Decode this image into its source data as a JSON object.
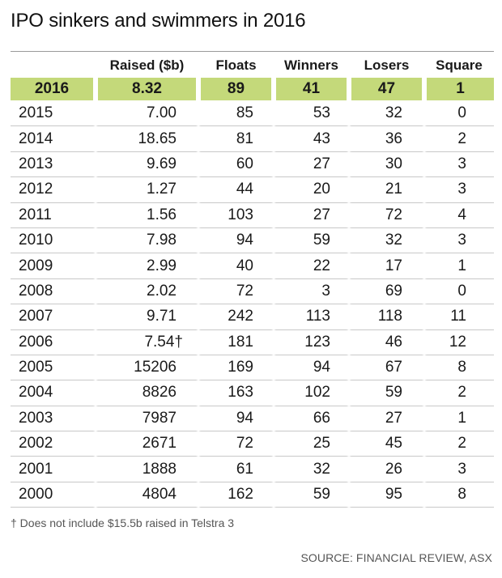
{
  "title": "IPO sinkers and swimmers in 2016",
  "colors": {
    "highlight": "#c4d97a",
    "rule": "#c8c8c8"
  },
  "columns": [
    "",
    "Raised ($b)",
    "Floats",
    "Winners",
    "Losers",
    "Square"
  ],
  "rows": [
    {
      "year": "2016",
      "raised": "8.32",
      "floats": "89",
      "winners": "41",
      "losers": "47",
      "square": "1"
    },
    {
      "year": "2015",
      "raised": "7.00",
      "floats": "85",
      "winners": "53",
      "losers": "32",
      "square": "0"
    },
    {
      "year": "2014",
      "raised": "18.65",
      "floats": "81",
      "winners": "43",
      "losers": "36",
      "square": "2"
    },
    {
      "year": "2013",
      "raised": "9.69",
      "floats": "60",
      "winners": "27",
      "losers": "30",
      "square": "3"
    },
    {
      "year": "2012",
      "raised": "1.27",
      "floats": "44",
      "winners": "20",
      "losers": "21",
      "square": "3"
    },
    {
      "year": "2011",
      "raised": "1.56",
      "floats": "103",
      "winners": "27",
      "losers": "72",
      "square": "4"
    },
    {
      "year": "2010",
      "raised": "7.98",
      "floats": "94",
      "winners": "59",
      "losers": "32",
      "square": "3"
    },
    {
      "year": "2009",
      "raised": "2.99",
      "floats": "40",
      "winners": "22",
      "losers": "17",
      "square": "1"
    },
    {
      "year": "2008",
      "raised": "2.02",
      "floats": "72",
      "winners": "3",
      "losers": "69",
      "square": "0"
    },
    {
      "year": "2007",
      "raised": "9.71",
      "floats": "242",
      "winners": "113",
      "losers": "118",
      "square": "11"
    },
    {
      "year": "2006",
      "raised": "7.54†",
      "floats": "181",
      "winners": "123",
      "losers": "46",
      "square": "12"
    },
    {
      "year": "2005",
      "raised": "15206",
      "floats": "169",
      "winners": "94",
      "losers": "67",
      "square": "8"
    },
    {
      "year": "2004",
      "raised": "8826",
      "floats": "163",
      "winners": "102",
      "losers": "59",
      "square": "2"
    },
    {
      "year": "2003",
      "raised": "7987",
      "floats": "94",
      "winners": "66",
      "losers": "27",
      "square": "1"
    },
    {
      "year": "2002",
      "raised": "2671",
      "floats": "72",
      "winners": "25",
      "losers": "45",
      "square": "2"
    },
    {
      "year": "2001",
      "raised": "1888",
      "floats": "61",
      "winners": "32",
      "losers": "26",
      "square": "3"
    },
    {
      "year": "2000",
      "raised": "4804",
      "floats": "162",
      "winners": "59",
      "losers": "95",
      "square": "8"
    }
  ],
  "footnote": "† Does not include $15.5b raised in Telstra 3",
  "source": "SOURCE: FINANCIAL REVIEW, ASX"
}
